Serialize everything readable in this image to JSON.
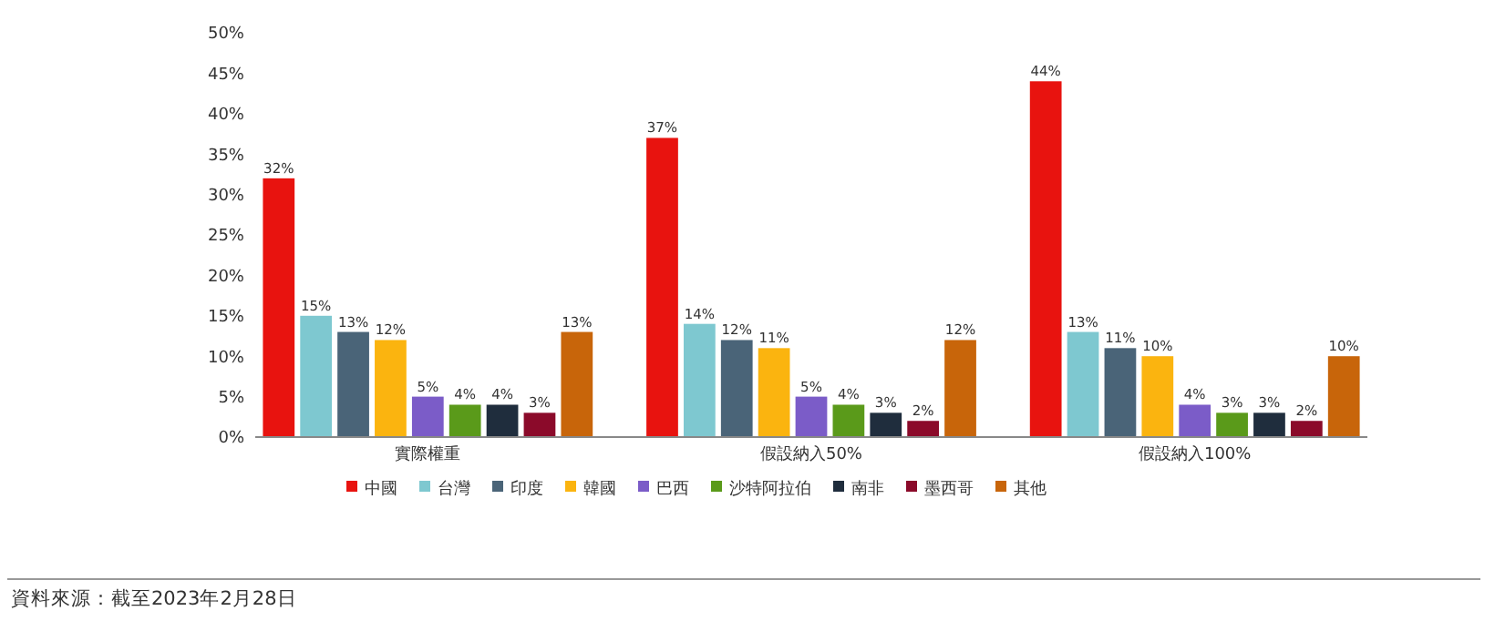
{
  "chart_data": {
    "type": "bar",
    "categories": [
      "實際權重",
      "假設納入50%",
      "假設納入100%"
    ],
    "series": [
      {
        "name": "中國",
        "color": "#e8130f",
        "values": [
          32,
          37,
          44
        ],
        "value_labels": [
          "32%",
          "37%",
          "44%"
        ]
      },
      {
        "name": "台灣",
        "color": "#7ec8d0",
        "values": [
          15,
          14,
          13
        ],
        "value_labels": [
          "15%",
          "14%",
          "13%"
        ]
      },
      {
        "name": "印度",
        "color": "#4a6478",
        "values": [
          13,
          12,
          11
        ],
        "value_labels": [
          "13%",
          "12%",
          "11%"
        ]
      },
      {
        "name": "韓國",
        "color": "#fbb40f",
        "values": [
          12,
          11,
          10
        ],
        "value_labels": [
          "12%",
          "11%",
          "10%"
        ]
      },
      {
        "name": "巴西",
        "color": "#7b5cc8",
        "values": [
          5,
          5,
          4
        ],
        "value_labels": [
          "5%",
          "5%",
          "4%"
        ]
      },
      {
        "name": "沙特阿拉伯",
        "color": "#5a9a1a",
        "values": [
          4,
          4,
          3
        ],
        "value_labels": [
          "4%",
          "4%",
          "3%"
        ]
      },
      {
        "name": "南非",
        "color": "#1f2d3d",
        "values": [
          4,
          3,
          3
        ],
        "value_labels": [
          "4%",
          "3%",
          "3%"
        ]
      },
      {
        "name": "墨西哥",
        "color": "#8b0a2a",
        "values": [
          3,
          2,
          2
        ],
        "value_labels": [
          "3%",
          "2%",
          "2%"
        ]
      },
      {
        "name": "其他",
        "color": "#c8650a",
        "values": [
          13,
          12,
          10
        ],
        "value_labels": [
          "13%",
          "12%",
          "10%"
        ]
      }
    ],
    "ylim": [
      0,
      50
    ],
    "yticks": [
      {
        "value": 0,
        "label": "0%"
      },
      {
        "value": 5,
        "label": "5%"
      },
      {
        "value": 10,
        "label": "10%"
      },
      {
        "value": 15,
        "label": "15%"
      },
      {
        "value": 20,
        "label": "20%"
      },
      {
        "value": 25,
        "label": "25%"
      },
      {
        "value": 30,
        "label": "30%"
      },
      {
        "value": 35,
        "label": "35%"
      },
      {
        "value": 40,
        "label": "40%"
      },
      {
        "value": 45,
        "label": "45%"
      },
      {
        "value": 50,
        "label": "50%"
      }
    ],
    "legend": "bottom",
    "annotations": [
      "資料來源：截至2023年2月28日"
    ]
  }
}
